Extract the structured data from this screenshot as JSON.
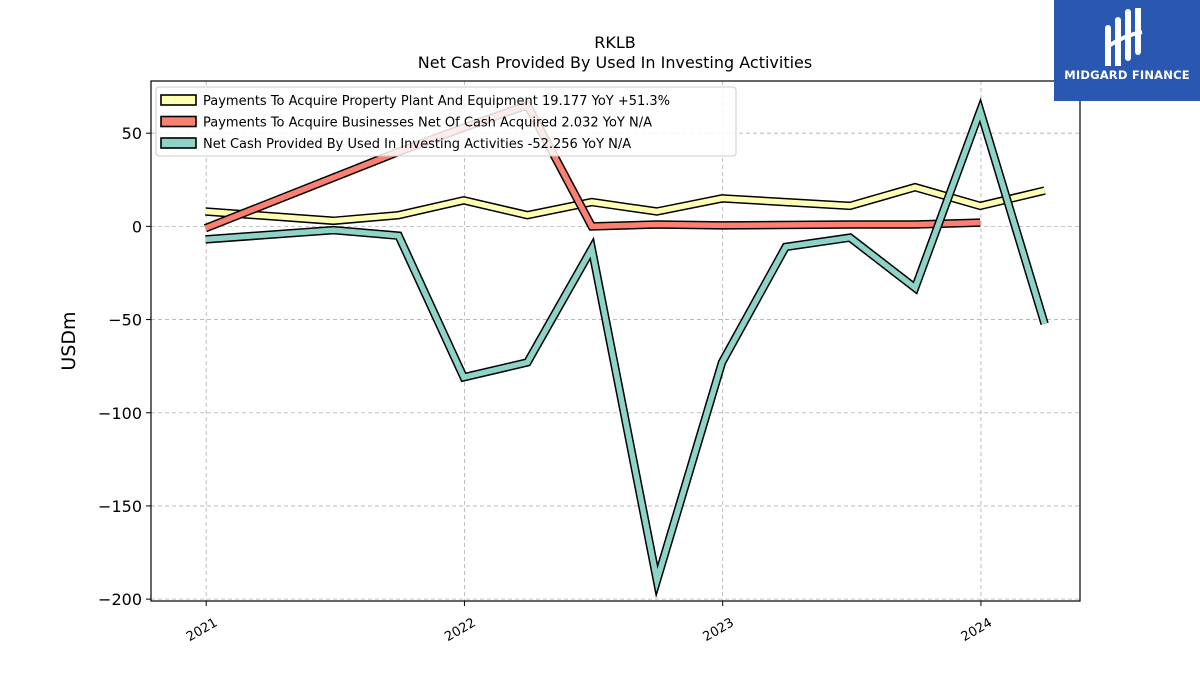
{
  "chart_data": {
    "type": "line",
    "title": "RKLB",
    "subtitle": "Net Cash Provided By Used In Investing Activities",
    "ylabel": "USDm",
    "xlabel": "",
    "ylim": [
      -201,
      78
    ],
    "xlim": [
      "2020-10-15",
      "2024-05-20"
    ],
    "yticks": [
      50,
      0,
      -50,
      -100,
      -150,
      -200
    ],
    "ytick_labels": [
      "50",
      "0",
      "−50",
      "−100",
      "−150",
      "−200"
    ],
    "xticks": [
      "2021-01-01",
      "2022-01-01",
      "2023-01-01",
      "2024-01-01"
    ],
    "xtick_labels": [
      "2021",
      "2022",
      "2023",
      "2024"
    ],
    "grid": true,
    "legend_position": "top-left",
    "series": [
      {
        "name": "Payments To Acquire Property Plant And Equipment  19.177 YoY +51.3%",
        "color": "#ffffb3",
        "x": [
          "2020-12-31",
          "2021-06-30",
          "2021-09-30",
          "2021-12-31",
          "2022-03-31",
          "2022-06-30",
          "2022-09-30",
          "2022-12-31",
          "2023-06-30",
          "2023-09-30",
          "2023-12-31",
          "2024-03-31"
        ],
        "values": [
          8,
          3,
          6,
          14,
          6,
          13,
          8,
          15,
          11,
          21,
          11,
          19.177
        ]
      },
      {
        "name": "Payments To Acquire Businesses Net Of Cash Acquired  2.032 YoY N/A",
        "color": "#fb8072",
        "x": [
          "2020-12-31",
          "2021-09-30",
          "2021-12-31",
          "2022-03-31",
          "2022-06-30",
          "2022-09-30",
          "2022-12-31",
          "2023-06-30",
          "2023-09-30",
          "2023-12-31"
        ],
        "values": [
          -1,
          40,
          53,
          65,
          0,
          1,
          0.5,
          1,
          1,
          2.032
        ]
      },
      {
        "name": "Net Cash Provided By Used In Investing Activities  -52.256 YoY N/A",
        "color": "#8dd3c7",
        "x": [
          "2020-12-31",
          "2021-06-30",
          "2021-09-30",
          "2021-12-31",
          "2022-03-31",
          "2022-06-30",
          "2022-09-30",
          "2022-12-31",
          "2023-03-31",
          "2023-06-30",
          "2023-09-30",
          "2023-12-31",
          "2024-03-31"
        ],
        "values": [
          -7,
          -2,
          -5,
          -81,
          -73,
          -12,
          -190,
          -73,
          -11,
          -6,
          -33,
          62,
          -52.256
        ]
      }
    ]
  },
  "logo": {
    "text": "MIDGARD FINANCE"
  }
}
